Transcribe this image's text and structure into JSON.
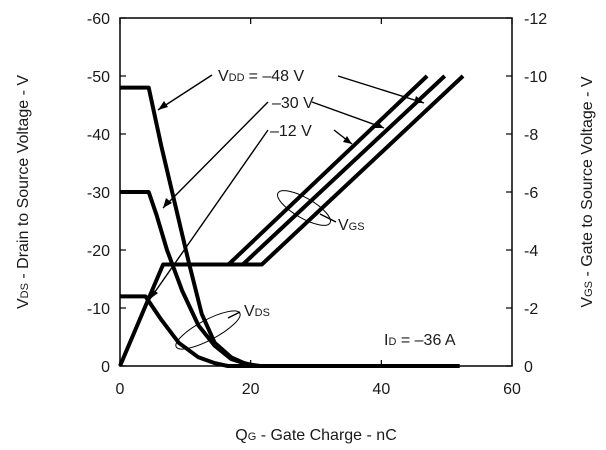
{
  "chart_data": {
    "type": "line",
    "title": "",
    "x_axis": {
      "label_main": "Q",
      "label_sub": "G",
      "label_rest": " - Gate Charge - nC",
      "min": 0,
      "max": 60,
      "ticks": [
        0,
        20,
        40,
        60
      ]
    },
    "y_left": {
      "label_main": "V",
      "label_sub": "DS",
      "label_rest": " - Drain to Source Voltage - V",
      "min": 0,
      "max": -60,
      "ticks": [
        0,
        -10,
        -20,
        -30,
        -40,
        -50,
        -60
      ]
    },
    "y_right": {
      "label_main": "V",
      "label_sub": "GS",
      "label_rest": " - Gate to Source Voltage - V",
      "min": 0,
      "max": -12,
      "ticks": [
        0,
        -2,
        -4,
        -6,
        -8,
        -10,
        -12
      ]
    },
    "grid": false,
    "vds_series": [
      {
        "vdd": -48,
        "points": [
          [
            0,
            -48
          ],
          [
            4.4,
            -48
          ],
          [
            6.3,
            -38
          ],
          [
            8.4,
            -28
          ],
          [
            10.5,
            -18
          ],
          [
            12.5,
            -9
          ],
          [
            14.5,
            -4
          ],
          [
            17,
            -1.5
          ],
          [
            19,
            -0.5
          ],
          [
            21,
            0
          ]
        ]
      },
      {
        "vdd": -30,
        "points": [
          [
            0,
            -30
          ],
          [
            4.4,
            -30
          ],
          [
            5.6,
            -26
          ],
          [
            7.2,
            -20
          ],
          [
            9.5,
            -13
          ],
          [
            12,
            -7
          ],
          [
            14.5,
            -3.5
          ],
          [
            17,
            -1.2
          ],
          [
            19.5,
            -0.3
          ],
          [
            21.5,
            0
          ]
        ]
      },
      {
        "vdd": -12,
        "points": [
          [
            0,
            -12
          ],
          [
            3.9,
            -12
          ],
          [
            6.3,
            -8
          ],
          [
            9,
            -4
          ],
          [
            12,
            -1.5
          ],
          [
            14.5,
            -0.5
          ],
          [
            16.5,
            0
          ],
          [
            52,
            0
          ]
        ]
      }
    ],
    "vgs_series": [
      {
        "vdd": -48,
        "points": [
          [
            0,
            0
          ],
          [
            6.6,
            -3.5
          ],
          [
            16.6,
            -3.5
          ],
          [
            47,
            -10
          ]
        ]
      },
      {
        "vdd": -30,
        "points": [
          [
            6.6,
            -3.5
          ],
          [
            18.8,
            -3.5
          ],
          [
            49.7,
            -10
          ]
        ]
      },
      {
        "vdd": -12,
        "points": [
          [
            6.6,
            -3.5
          ],
          [
            21.7,
            -3.5
          ],
          [
            52.5,
            -10
          ]
        ]
      }
    ],
    "annotations": {
      "vdd_prefix_main": "V",
      "vdd_prefix_sub": "DD",
      "vdd_48": "= –48 V",
      "vdd_30": "–30 V",
      "vdd_12": "–12 V",
      "vgs_main": "V",
      "vgs_sub": "GS",
      "vds_main": "V",
      "vds_sub": "DS",
      "id_main": "I",
      "id_sub": "D",
      "id_rest": " = –36 A"
    }
  }
}
